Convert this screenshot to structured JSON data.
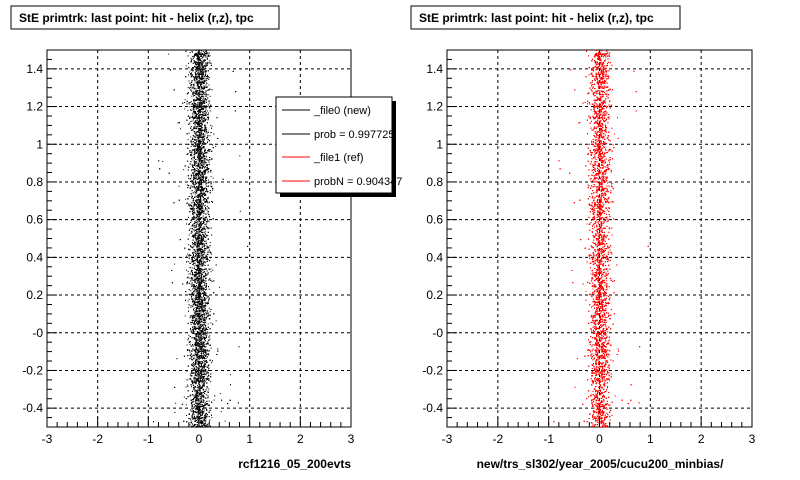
{
  "colors": {
    "new": "#000000",
    "ref": "#ff0000",
    "background": "#ffffff"
  },
  "chart_data": [
    {
      "type": "scatter",
      "title": "StE primtrk: last point: hit - helix (r,z), tpc",
      "xlabel": "rcf1216_05_200evts",
      "xlim": [
        -3,
        3
      ],
      "ylim": [
        -0.5,
        1.5
      ],
      "xticks": [
        "-3",
        "-2",
        "-1",
        "0",
        "1",
        "2",
        "3"
      ],
      "yticks": [
        "-0.4",
        "-0.2",
        "-0",
        "0.2",
        "0.4",
        "0.6",
        "0.8",
        "1",
        "1.2",
        "1.4"
      ],
      "grid": true,
      "series_color": "#000000",
      "distribution": {
        "center_x": 0.0,
        "spread_x": 0.1,
        "count": 9000
      },
      "legend": {
        "placement": "top-right",
        "entries": [
          {
            "label": "_file0 (new)",
            "color": "#000000"
          },
          {
            "label": "prob = 0.997725",
            "color": "#000000"
          },
          {
            "label": "_file1 (ref)",
            "color": "#ff0000"
          },
          {
            "label": "probN = 0.904347",
            "color": "#ff0000"
          }
        ]
      }
    },
    {
      "type": "scatter",
      "title": "StE primtrk: last point: hit - helix (r,z), tpc",
      "xlabel": "new/trs_sl302/year_2005/cucu200_minbias/",
      "xlim": [
        -3,
        3
      ],
      "ylim": [
        -0.5,
        1.5
      ],
      "xticks": [
        "-3",
        "-2",
        "-1",
        "0",
        "1",
        "2",
        "3"
      ],
      "yticks": [
        "-0.4",
        "-0.2",
        "-0",
        "0.2",
        "0.4",
        "0.6",
        "0.8",
        "1",
        "1.2",
        "1.4"
      ],
      "grid": true,
      "series_color": "#ff0000",
      "distribution": {
        "center_x": 0.0,
        "spread_x": 0.1,
        "count": 9000
      }
    }
  ]
}
